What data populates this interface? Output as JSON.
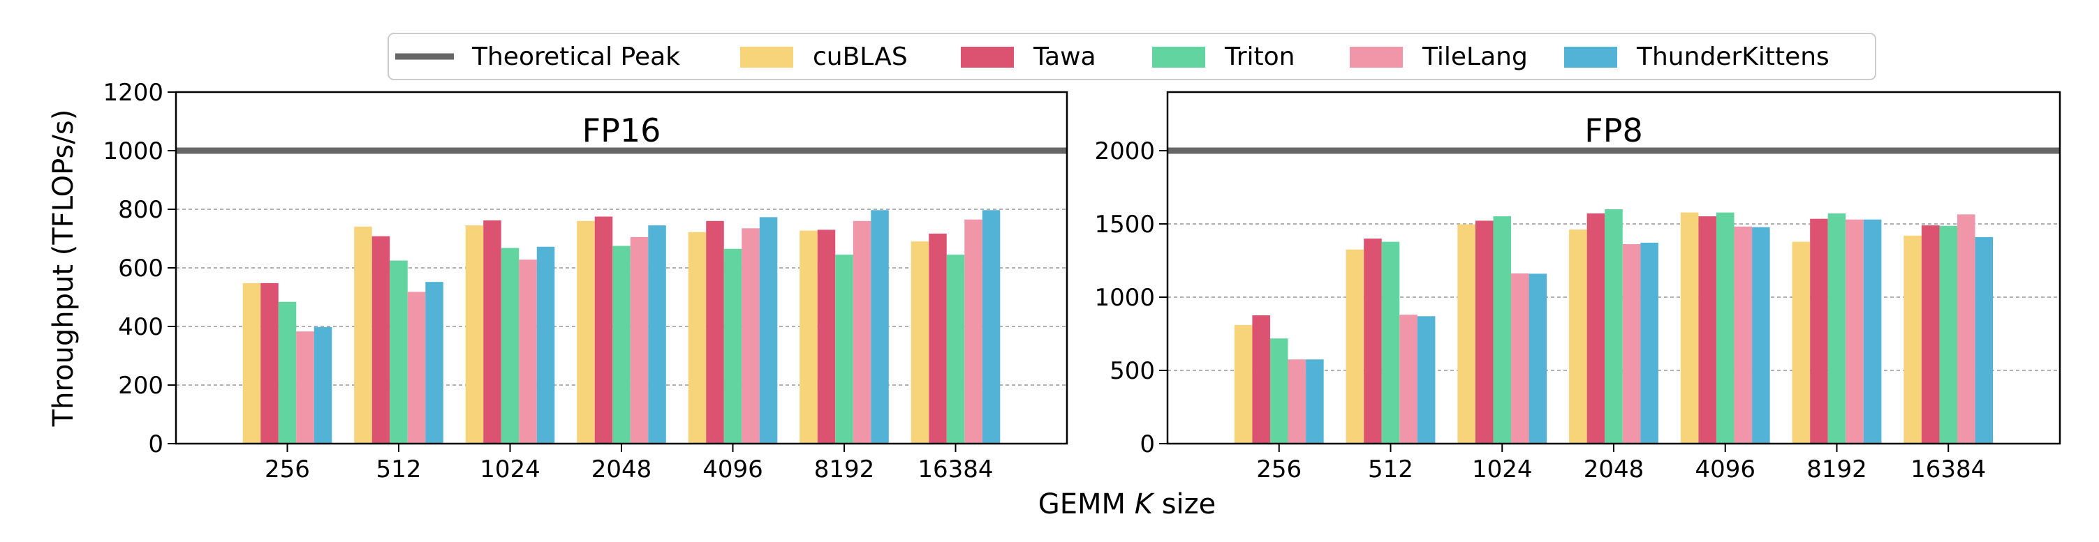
{
  "colors": {
    "peak": "#666666",
    "grid": "#b0b0b0",
    "axis": "#000000",
    "legend_border": "#cccccc"
  },
  "figure": {
    "ylabel": "Throughput (TFLOPs/s)",
    "xlabel_prefix": "GEMM ",
    "xlabel_italic": "K",
    "xlabel_suffix": " size"
  },
  "legend": {
    "peak_label": "Theoretical Peak",
    "series_labels": [
      "cuBLAS",
      "Tawa",
      "Triton",
      "TileLang",
      "ThunderKittens"
    ]
  },
  "chart_data": [
    {
      "type": "bar",
      "title": "FP16",
      "categories": [
        "256",
        "512",
        "1024",
        "2048",
        "4096",
        "8192",
        "16384"
      ],
      "ylim": [
        0,
        1200
      ],
      "yticks": [
        0,
        200,
        400,
        600,
        800,
        1000,
        1200
      ],
      "theoretical_peak": 1000,
      "grid": "horizontal dashed",
      "series": [
        {
          "name": "cuBLAS",
          "color": "#f7d37a",
          "values": [
            548,
            741,
            745,
            760,
            722,
            727,
            690
          ]
        },
        {
          "name": "Tawa",
          "color": "#dc5271",
          "values": [
            548,
            708,
            762,
            775,
            760,
            730,
            717
          ]
        },
        {
          "name": "Triton",
          "color": "#62d4a0",
          "values": [
            484,
            625,
            668,
            675,
            665,
            645,
            645
          ]
        },
        {
          "name": "TileLang",
          "color": "#f195a9",
          "values": [
            383,
            518,
            628,
            705,
            735,
            760,
            765
          ]
        },
        {
          "name": "ThunderKittens",
          "color": "#52b3d6",
          "values": [
            398,
            552,
            672,
            745,
            773,
            797,
            797
          ]
        }
      ]
    },
    {
      "type": "bar",
      "title": "FP8",
      "categories": [
        "256",
        "512",
        "1024",
        "2048",
        "4096",
        "8192",
        "16384"
      ],
      "ylim": [
        0,
        2400
      ],
      "yticks": [
        0,
        500,
        1000,
        1500,
        2000
      ],
      "theoretical_peak": 2000,
      "grid": "horizontal dashed",
      "series": [
        {
          "name": "cuBLAS",
          "color": "#f7d37a",
          "values": [
            810,
            1325,
            1497,
            1462,
            1578,
            1378,
            1420
          ]
        },
        {
          "name": "Tawa",
          "color": "#dc5271",
          "values": [
            876,
            1400,
            1522,
            1572,
            1552,
            1535,
            1490
          ]
        },
        {
          "name": "Triton",
          "color": "#62d4a0",
          "values": [
            718,
            1378,
            1552,
            1600,
            1578,
            1572,
            1487
          ]
        },
        {
          "name": "TileLang",
          "color": "#f195a9",
          "values": [
            575,
            880,
            1162,
            1362,
            1482,
            1530,
            1565
          ]
        },
        {
          "name": "ThunderKittens",
          "color": "#52b3d6",
          "values": [
            575,
            870,
            1160,
            1372,
            1478,
            1530,
            1410
          ]
        }
      ]
    }
  ]
}
